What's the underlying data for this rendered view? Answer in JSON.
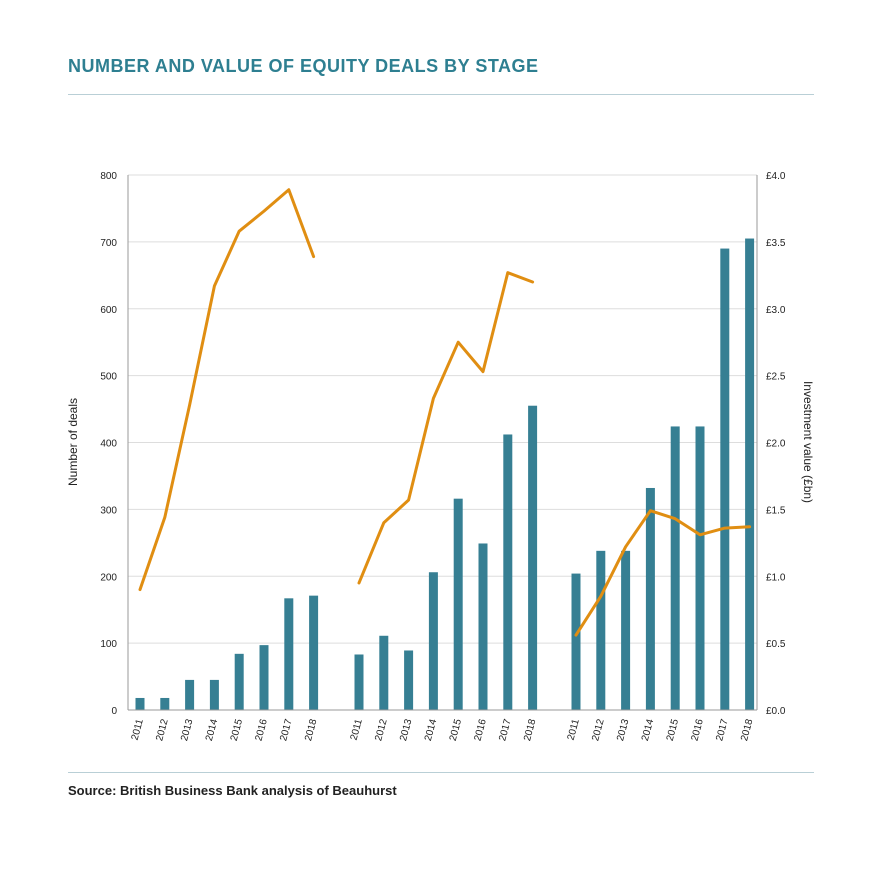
{
  "title": "NUMBER AND VALUE OF EQUITY DEALS BY STAGE",
  "source": "Source: British Business Bank analysis of Beauhurst",
  "colors": {
    "bars": "#367f93",
    "line": "#e08e12",
    "title": "#2e7f91",
    "grid": "#dddddd"
  },
  "chart_data": {
    "type": "bar",
    "ylabel": "Number of deals",
    "y2label": "Investment value (£bn)",
    "ylim": [
      0,
      800
    ],
    "y2lim": [
      0,
      4.0
    ],
    "yticks": [
      "0",
      "100",
      "200",
      "300",
      "400",
      "500",
      "600",
      "700",
      "800"
    ],
    "y2ticks": [
      "£0.0",
      "£0.5",
      "£1.0",
      "£1.5",
      "£2.0",
      "£2.5",
      "£3.0",
      "£3.5",
      "£4.0"
    ],
    "grid": true,
    "groups": [
      {
        "categories": [
          "2011",
          "2012",
          "2013",
          "2014",
          "2015",
          "2016",
          "2017",
          "2018"
        ],
        "deals": [
          18,
          18,
          45,
          45,
          84,
          97,
          167,
          171
        ],
        "value_bn": [
          0.9,
          1.44,
          2.28,
          3.17,
          3.58,
          3.73,
          3.89,
          3.39
        ]
      },
      {
        "categories": [
          "2011",
          "2012",
          "2013",
          "2014",
          "2015",
          "2016",
          "2017",
          "2018"
        ],
        "deals": [
          83,
          111,
          89,
          206,
          316,
          249,
          412,
          455
        ],
        "value_bn": [
          0.95,
          1.4,
          1.57,
          2.33,
          2.75,
          2.53,
          3.27,
          3.2
        ]
      },
      {
        "categories": [
          "2011",
          "2012",
          "2013",
          "2014",
          "2015",
          "2016",
          "2017",
          "2018"
        ],
        "deals": [
          204,
          238,
          238,
          332,
          424,
          424,
          690,
          705
        ],
        "value_bn": [
          0.56,
          0.85,
          1.22,
          1.49,
          1.43,
          1.31,
          1.36,
          1.37
        ]
      }
    ]
  }
}
